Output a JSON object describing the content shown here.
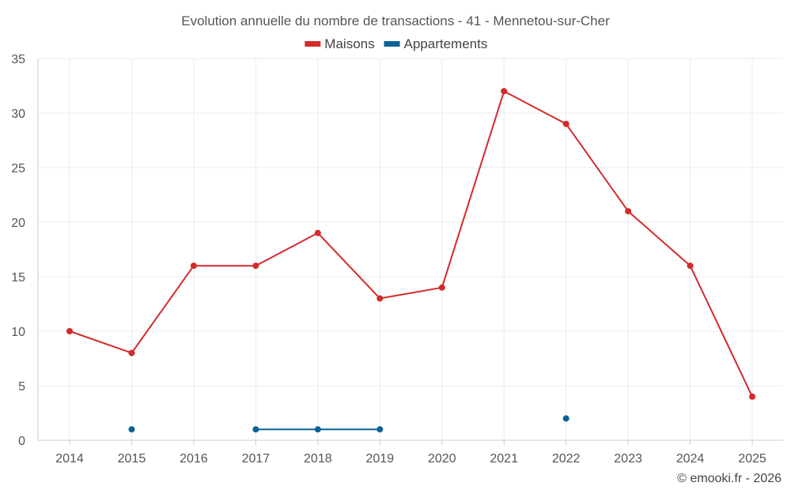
{
  "chart_data": {
    "type": "line",
    "title": "Evolution annuelle du nombre de transactions - 41 - Mennetou-sur-Cher",
    "x": [
      "2014",
      "2015",
      "2016",
      "2017",
      "2018",
      "2019",
      "2020",
      "2021",
      "2022",
      "2023",
      "2024",
      "2025"
    ],
    "series": [
      {
        "name": "Maisons",
        "color": "#d42a2a",
        "values": [
          10,
          8,
          16,
          16,
          19,
          13,
          14,
          32,
          29,
          21,
          16,
          4
        ]
      },
      {
        "name": "Appartements",
        "color": "#0a6296",
        "values": [
          null,
          1,
          null,
          1,
          1,
          1,
          null,
          null,
          2,
          null,
          null,
          null
        ]
      }
    ],
    "ylim": [
      0,
      35
    ],
    "yticks": [
      0,
      5,
      10,
      15,
      20,
      25,
      30,
      35
    ],
    "grid": true,
    "legend_position": "top-center"
  },
  "credit": "© emooki.fr - 2026"
}
